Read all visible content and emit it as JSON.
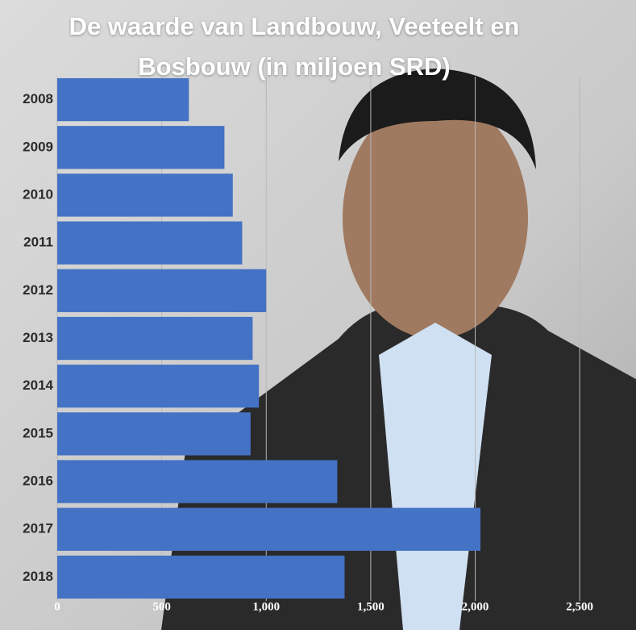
{
  "chart_data": {
    "type": "bar",
    "orientation": "horizontal",
    "title": "De waarde van Landbouw, Veeteelt en Bosbouw (in miljoen SRD)",
    "categories": [
      "2008",
      "2009",
      "2010",
      "2011",
      "2012",
      "2013",
      "2014",
      "2015",
      "2016",
      "2017",
      "2018"
    ],
    "values": [
      630,
      800,
      840,
      885,
      1000,
      935,
      965,
      925,
      1340,
      2025,
      1375
    ],
    "color": "#4472c4",
    "xlim": [
      0,
      2750
    ],
    "xticks": [
      0,
      500,
      {
        "value": 1000,
        "label": "1,000"
      },
      {
        "value": 1500,
        "label": "1,500"
      },
      {
        "value": 2000,
        "label": "2,000"
      },
      {
        "value": 2500,
        "label": "2,500"
      }
    ],
    "grid": true
  }
}
